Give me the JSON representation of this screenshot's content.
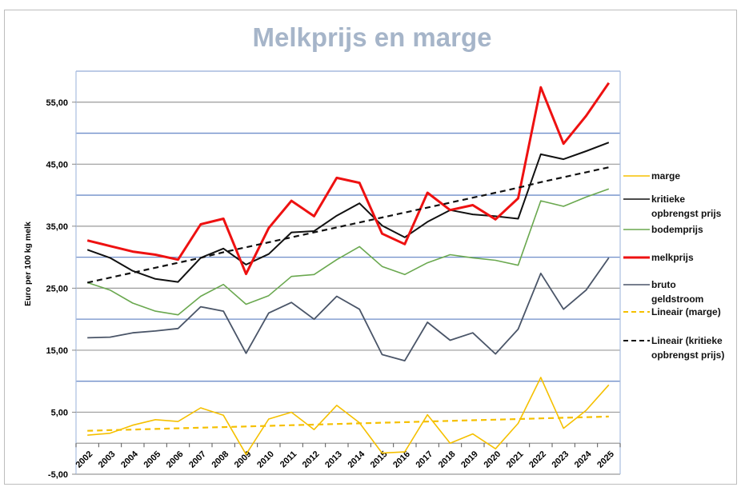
{
  "chart_data": {
    "type": "line",
    "title": "Melkprijs en marge",
    "xlabel": "",
    "ylabel": "Euro per 100 kg melk",
    "ylim": [
      -5,
      60
    ],
    "yticks": [
      "-5,00",
      "5,00",
      "15,00",
      "25,00",
      "35,00",
      "45,00",
      "55,00"
    ],
    "ytick_values": [
      -5,
      5,
      15,
      25,
      35,
      45,
      55
    ],
    "grid": true,
    "legend_position": "right",
    "categories": [
      "2002",
      "2003",
      "2004",
      "2005",
      "2006",
      "2007",
      "2008",
      "2009",
      "2010",
      "2011",
      "2012",
      "2013",
      "2014",
      "2015",
      "2016",
      "2017",
      "2018",
      "2019",
      "2020",
      "2021",
      "2022",
      "2023",
      "2024",
      "2025"
    ],
    "series": [
      {
        "name": "marge",
        "color": "#f5c000",
        "width": 1.6,
        "dash": false,
        "legend_lines": [
          "marge"
        ],
        "values": [
          1.3,
          1.6,
          2.9,
          3.8,
          3.5,
          5.7,
          4.5,
          -1.8,
          3.9,
          5.0,
          2.2,
          6.1,
          3.3,
          -1.6,
          -1.4,
          4.6,
          0.0,
          1.5,
          -0.9,
          3.2,
          10.6,
          2.4,
          5.3,
          9.4
        ]
      },
      {
        "name": "kritieke opbrengst prijs",
        "color": "#111111",
        "width": 2,
        "dash": false,
        "legend_lines": [
          "kritieke",
          "opbrengst prijs"
        ],
        "values": [
          31.2,
          29.9,
          27.8,
          26.5,
          26.0,
          29.9,
          31.4,
          28.8,
          30.5,
          34.0,
          34.2,
          36.7,
          38.7,
          35.1,
          33.2,
          35.7,
          37.6,
          36.9,
          36.6,
          36.2,
          46.6,
          45.8,
          47.1,
          48.5
        ]
      },
      {
        "name": "bodemprijs",
        "color": "#6aa84f",
        "width": 1.6,
        "dash": false,
        "legend_lines": [
          "bodemprijs"
        ],
        "values": [
          25.9,
          24.7,
          22.6,
          21.3,
          20.7,
          23.7,
          25.6,
          22.4,
          23.8,
          26.9,
          27.2,
          29.6,
          31.7,
          28.5,
          27.2,
          29.1,
          30.4,
          29.9,
          29.5,
          28.7,
          39.1,
          38.2,
          39.7,
          41.0
        ]
      },
      {
        "name": "melkprijs",
        "color": "#ee1111",
        "width": 3,
        "dash": false,
        "legend_lines": [
          "melkprijs"
        ],
        "values": [
          32.7,
          31.8,
          30.9,
          30.4,
          29.6,
          35.3,
          36.2,
          27.3,
          34.7,
          39.1,
          36.6,
          42.8,
          42.0,
          33.8,
          32.1,
          40.4,
          37.6,
          38.4,
          36.1,
          39.5,
          57.4,
          48.3,
          52.8,
          58.1
        ]
      },
      {
        "name": "bruto geldstroom",
        "color": "#4a5568",
        "width": 1.8,
        "dash": false,
        "legend_lines": [
          "bruto",
          "geldstroom"
        ],
        "values": [
          17.0,
          17.1,
          17.8,
          18.1,
          18.5,
          22.0,
          21.3,
          14.5,
          21.0,
          22.7,
          20.0,
          23.7,
          21.6,
          14.3,
          13.3,
          19.5,
          16.6,
          17.8,
          14.4,
          18.4,
          27.4,
          21.6,
          24.7,
          29.9
        ]
      },
      {
        "name": "Lineair (marge)",
        "color": "#f5c000",
        "width": 2.2,
        "dash": true,
        "legend_lines": [
          "Lineair (marge)"
        ],
        "values": [
          2.0,
          2.1,
          2.2,
          2.3,
          2.4,
          2.5,
          2.6,
          2.7,
          2.8,
          2.9,
          3.0,
          3.1,
          3.2,
          3.3,
          3.4,
          3.5,
          3.6,
          3.7,
          3.8,
          3.9,
          4.0,
          4.1,
          4.2,
          4.3
        ]
      },
      {
        "name": "Lineair (kritieke opbrengst prijs)",
        "color": "#111111",
        "width": 2.2,
        "dash": true,
        "legend_lines": [
          "Lineair (kritieke",
          "opbrengst prijs)"
        ],
        "values": [
          25.9,
          26.7,
          27.5,
          28.3,
          29.1,
          29.9,
          30.8,
          31.6,
          32.4,
          33.2,
          34.0,
          34.8,
          35.6,
          36.4,
          37.2,
          38.0,
          38.8,
          39.6,
          40.4,
          41.2,
          42.1,
          42.9,
          43.7,
          44.5
        ]
      }
    ]
  }
}
